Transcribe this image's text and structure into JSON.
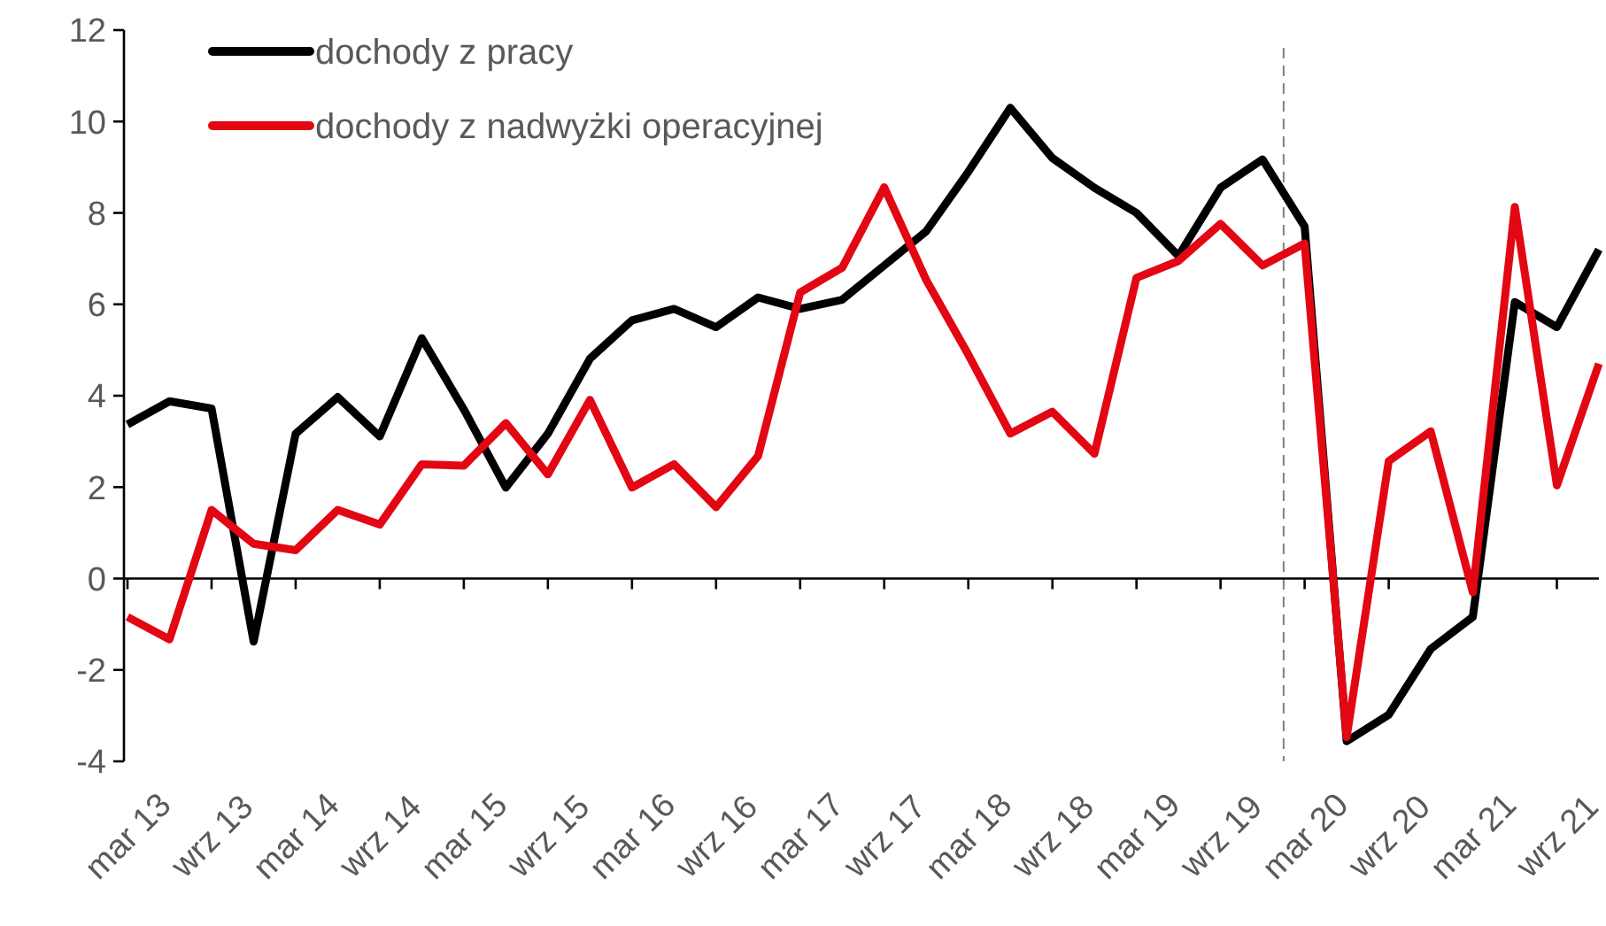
{
  "chart_data": {
    "type": "line",
    "categories": [
      "mar 13",
      null,
      "wrz 13",
      null,
      "mar 14",
      null,
      "wrz 14",
      null,
      "mar 15",
      null,
      "wrz 15",
      null,
      "mar 16",
      null,
      "wrz 16",
      null,
      "mar 17",
      null,
      "wrz 17",
      null,
      "mar 18",
      null,
      "wrz 18",
      null,
      "mar 19",
      null,
      "wrz 19",
      null,
      "mar 20",
      null,
      "wrz 20",
      null,
      "mar 21",
      null,
      "wrz 21",
      null
    ],
    "series": [
      {
        "name": "dochody z pracy",
        "color": "#000000",
        "values": [
          3.37,
          3.88,
          3.72,
          -1.38,
          3.17,
          3.97,
          3.11,
          5.26,
          3.7,
          1.99,
          3.17,
          4.81,
          5.65,
          5.9,
          5.5,
          6.15,
          5.9,
          6.1,
          6.85,
          7.6,
          8.9,
          10.3,
          9.2,
          8.55,
          8.0,
          7.06,
          8.55,
          9.17,
          7.7,
          -3.56,
          -2.98,
          -1.54,
          -0.84,
          6.05,
          5.5,
          7.2
        ]
      },
      {
        "name": "dochody z nadwyżki operacyjnej",
        "color": "#e30613",
        "values": [
          -0.84,
          -1.33,
          1.5,
          0.76,
          0.62,
          1.5,
          1.18,
          2.5,
          2.47,
          3.4,
          2.28,
          3.91,
          1.99,
          2.5,
          1.56,
          2.68,
          6.26,
          6.8,
          8.56,
          6.53,
          4.9,
          3.17,
          3.65,
          2.73,
          6.58,
          6.95,
          7.76,
          6.85,
          7.33,
          -3.47,
          2.57,
          3.22,
          -0.3,
          8.13,
          2.04,
          4.7
        ]
      }
    ],
    "ylim": [
      -4,
      12
    ],
    "yticks": [
      -4,
      -2,
      0,
      2,
      4,
      6,
      8,
      10,
      12
    ],
    "legend": "top left",
    "grid": false,
    "marker": "none",
    "line_style": "solid"
  }
}
